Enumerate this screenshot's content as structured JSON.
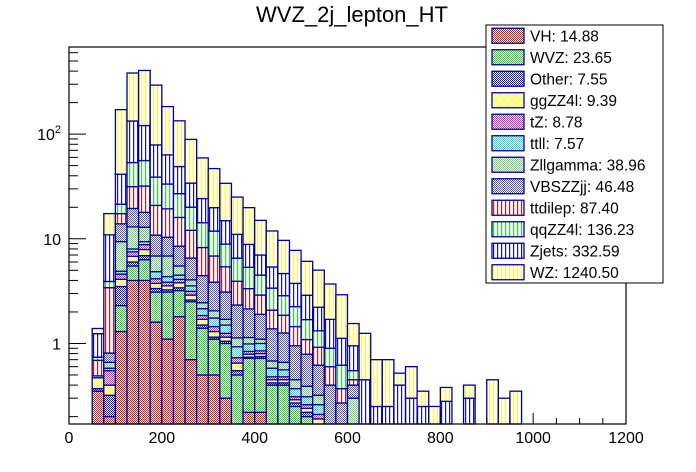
{
  "chart_data": {
    "type": "bar",
    "subtype": "stacked-histogram",
    "title": "WVZ_2j_lepton_HT",
    "xlabel": "",
    "ylabel": "",
    "xlim": [
      0,
      1200
    ],
    "ylim": [
      0.17,
      680
    ],
    "yscale": "log",
    "grid": false,
    "legend_position": "top-right",
    "x_ticks": [
      "0",
      "200",
      "400",
      "600",
      "800",
      "1000",
      "1200"
    ],
    "x_tick_values": [
      0,
      200,
      400,
      600,
      800,
      1000,
      1200
    ],
    "y_ticks": [
      "1",
      "10",
      "10^2"
    ],
    "y_tick_values": [
      1,
      10,
      100
    ],
    "bin_edges_start": 50,
    "bin_width": 25,
    "series": [
      {
        "name": "VH",
        "legend": "VH: 14.88",
        "color": "#cc2222",
        "pattern": "checker",
        "values": [
          0.35,
          0.2,
          1.3,
          4.0,
          4.0,
          1.6,
          1.1,
          1.8,
          0.7,
          0.5,
          0.5,
          0.3,
          0,
          0.22,
          0.22,
          0,
          0,
          0,
          0,
          0,
          0,
          0,
          0,
          0,
          0,
          0,
          0,
          0,
          0,
          0,
          0,
          0,
          0,
          0,
          0,
          0,
          0,
          0
        ]
      },
      {
        "name": "WVZ",
        "legend": "WVZ: 23.65",
        "color": "#33cc33",
        "pattern": "checker",
        "values": [
          0,
          0,
          1.0,
          1.5,
          2.3,
          1.5,
          2.0,
          1.4,
          1.8,
          0.9,
          0.6,
          0.7,
          0.5,
          0.5,
          0.5,
          0.4,
          0.4,
          0.25,
          0.2,
          0.15,
          0,
          0,
          0,
          0,
          0,
          0,
          0,
          0,
          0,
          0,
          0,
          0,
          0,
          0,
          0,
          0,
          0,
          0
        ]
      },
      {
        "name": "Other",
        "legend": "Other: 7.55",
        "color": "#1a1acc",
        "pattern": "checker",
        "values": [
          0.02,
          0.12,
          1.2,
          0.5,
          0.6,
          0.25,
          0.15,
          0.2,
          0.1,
          0.1,
          0.05,
          0.05,
          0.05,
          0.02,
          0.03,
          0.02,
          0.02,
          0.02,
          0.02,
          0.02,
          0.02,
          0,
          0,
          0,
          0,
          0,
          0,
          0,
          0,
          0,
          0,
          0,
          0,
          0,
          0,
          0,
          0,
          0
        ]
      },
      {
        "name": "ggZZ4l",
        "legend": "ggZZ4l: 9.39",
        "color": "#ffff33",
        "pattern": "checker",
        "values": [
          0.1,
          0.08,
          0.6,
          0.8,
          1.0,
          0.4,
          0.3,
          0.4,
          0.3,
          0.2,
          0.15,
          0.1,
          0.1,
          0.05,
          0.05,
          0.03,
          0.03,
          0.02,
          0.02,
          0.02,
          0.02,
          0,
          0,
          0,
          0,
          0,
          0,
          0,
          0,
          0,
          0,
          0,
          0,
          0,
          0,
          0,
          0,
          0
        ]
      },
      {
        "name": "tZ",
        "legend": "tZ: 8.78",
        "color": "#cc33cc",
        "pattern": "checker",
        "values": [
          0,
          0.15,
          0.5,
          0.7,
          0.9,
          0.4,
          0.3,
          0.3,
          0.25,
          0.15,
          0.15,
          0.1,
          0.08,
          0.05,
          0.05,
          0.03,
          0.03,
          0.02,
          0.02,
          0.02,
          0.02,
          0,
          0,
          0,
          0,
          0,
          0,
          0,
          0,
          0,
          0,
          0,
          0,
          0,
          0,
          0,
          0,
          0
        ]
      },
      {
        "name": "ttll",
        "legend": "ttll: 7.57",
        "color": "#33dddd",
        "pattern": "checker",
        "values": [
          0.02,
          0.03,
          0.3,
          0.5,
          0.6,
          0.7,
          0.5,
          0.4,
          0.4,
          0.3,
          0.3,
          0.25,
          0.2,
          0.15,
          0.15,
          0.1,
          0.08,
          0.06,
          0.05,
          0.05,
          0.04,
          0.02,
          0,
          0,
          0,
          0,
          0,
          0,
          0,
          0,
          0,
          0,
          0,
          0,
          0,
          0,
          0,
          0
        ]
      },
      {
        "name": "Zllgamma",
        "legend": "Zllgamma: 38.96",
        "color": "#77cc77",
        "pattern": "checker",
        "values": [
          0,
          0.08,
          4.5,
          5.0,
          3.5,
          2.0,
          2.5,
          1.0,
          0.5,
          0.3,
          0.3,
          0.2,
          0.2,
          0.15,
          0.1,
          0.1,
          0.1,
          0.08,
          0.08,
          0.06,
          0.05,
          0.05,
          0.3,
          0,
          0,
          0,
          0,
          0,
          0,
          0,
          0,
          0,
          0,
          0,
          0,
          0,
          0,
          0
        ]
      },
      {
        "name": "VBSZZjj",
        "legend": "VBSZZjj: 46.48",
        "color": "#5555bb",
        "pattern": "checker",
        "values": [
          0,
          0.15,
          4.5,
          6.5,
          5.0,
          4.0,
          3.5,
          3.0,
          2.5,
          2.0,
          1.8,
          1.4,
          1.2,
          1.0,
          0.8,
          0.7,
          0.6,
          0.5,
          0.4,
          0.3,
          0.25,
          0.2,
          0.1,
          0.05,
          0,
          0,
          0,
          0,
          0,
          0,
          0,
          0,
          0,
          0,
          0,
          0,
          0,
          0
        ]
      },
      {
        "name": "ttdilep",
        "legend": "ttdilep: 87.40",
        "color": "#dd1111",
        "pattern": "vlines",
        "values": [
          0.2,
          2.6,
          3.5,
          12.0,
          14.0,
          10.0,
          9.0,
          7.5,
          5.5,
          3.8,
          3.0,
          2.3,
          1.6,
          1.2,
          1.0,
          0.7,
          0.6,
          0.5,
          0.3,
          0.3,
          0.2,
          0.1,
          0.05,
          0.05,
          0,
          0,
          0,
          0,
          0,
          0,
          0,
          0,
          0,
          0,
          0,
          0,
          0,
          0
        ]
      },
      {
        "name": "qqZZ4l",
        "legend": "qqZZ4l: 136.23",
        "color": "#22dd22",
        "pattern": "vlines",
        "values": [
          0.05,
          0.5,
          4.0,
          22.0,
          24.0,
          18.0,
          14.0,
          11.0,
          8.0,
          6.0,
          5.0,
          3.5,
          2.6,
          2.0,
          1.6,
          1.3,
          1.0,
          0.8,
          0.6,
          0.4,
          0.3,
          0.25,
          0.1,
          0.05,
          0,
          0,
          0,
          0,
          0,
          0,
          0,
          0,
          0,
          0,
          0,
          0,
          0,
          0
        ]
      },
      {
        "name": "Zjets",
        "legend": "Zjets: 332.59",
        "color": "#1111cc",
        "pattern": "vlines",
        "values": [
          0.5,
          7.0,
          20.0,
          80.0,
          65.0,
          40.0,
          30.0,
          22.0,
          14.0,
          10.0,
          8.0,
          6.0,
          4.5,
          3.5,
          2.5,
          2.0,
          1.8,
          1.5,
          1.2,
          0.9,
          0.8,
          0.5,
          0.4,
          0.3,
          0.25,
          0.25,
          0.4,
          0.3,
          0.25,
          0,
          0.28,
          0.05,
          0.3,
          0,
          0.15,
          0.05,
          0,
          0
        ]
      },
      {
        "name": "WZ",
        "legend": "WZ: 1240.50",
        "color": "#ffff22",
        "pattern": "vlines",
        "values": [
          0.15,
          6.5,
          130.0,
          250.0,
          285.0,
          215.0,
          120.0,
          85.0,
          55.0,
          35.0,
          27.0,
          19.0,
          14.0,
          11.0,
          8.0,
          6.5,
          5.0,
          4.0,
          3.2,
          2.8,
          2.0,
          1.8,
          0.6,
          0.8,
          0.45,
          0.45,
          0.12,
          0.3,
          0.1,
          0.25,
          0.1,
          0.05,
          0.1,
          0,
          0.3,
          0.25,
          0.35,
          0
        ]
      }
    ]
  }
}
